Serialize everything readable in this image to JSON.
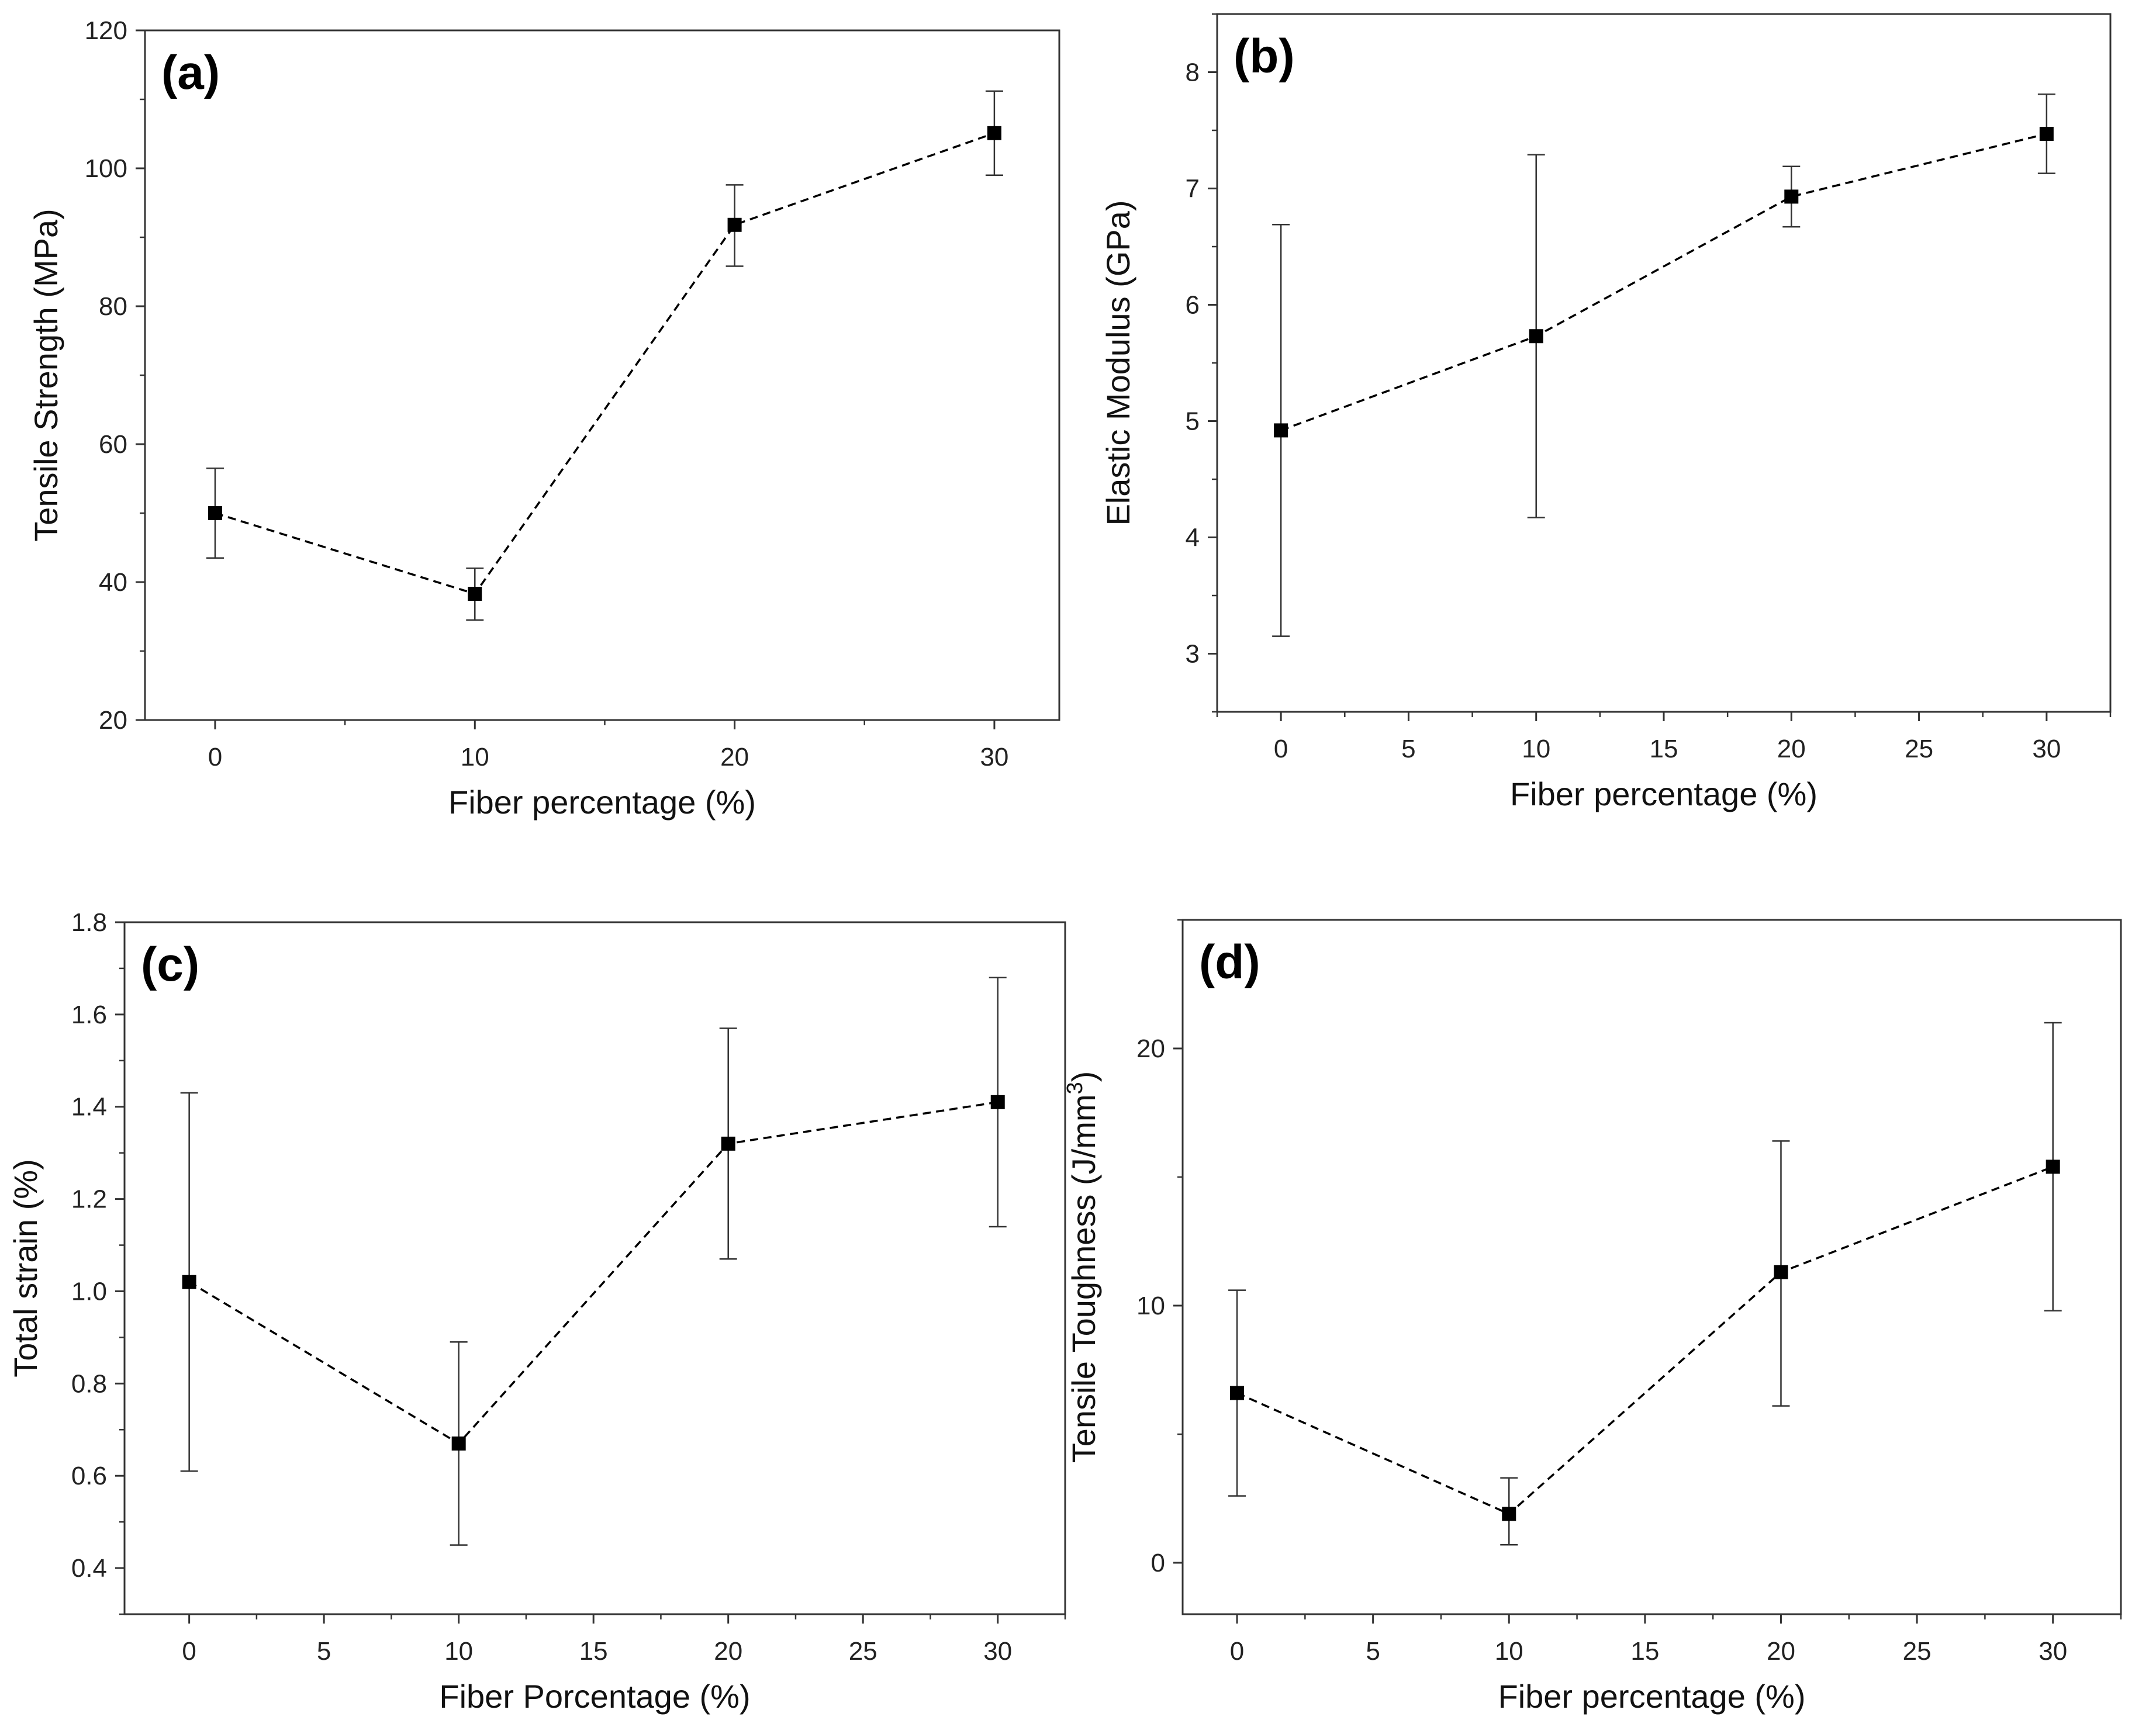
{
  "chart_data": [
    {
      "type": "line",
      "panel_label": "(a)",
      "xlabel": "Fiber percentage (%)",
      "ylabel": "Tensile Strength (MPa)",
      "x": [
        0,
        10,
        20,
        30
      ],
      "values": [
        50,
        38.3,
        91.8,
        105.1
      ],
      "err_low": [
        43.5,
        34.5,
        85.8,
        99
      ],
      "err_high": [
        56.5,
        42,
        97.6,
        111.2
      ],
      "xlim": [
        -2.7,
        32.5
      ],
      "ylim": [
        20,
        120
      ],
      "xticks": [
        0,
        10,
        20,
        30
      ],
      "xtick_labels": [
        "0",
        "10",
        "20",
        "30"
      ],
      "yticks": [
        20,
        40,
        60,
        80,
        100,
        120
      ],
      "ytick_labels": [
        "20",
        "40",
        "60",
        "80",
        "100",
        "120"
      ]
    },
    {
      "type": "line",
      "panel_label": "(b)",
      "xlabel": "Fiber percentage (%)",
      "ylabel": "Elastic Modulus (GPa)",
      "x": [
        0,
        10,
        20,
        30
      ],
      "values": [
        4.92,
        5.73,
        6.93,
        7.47
      ],
      "err_low": [
        3.15,
        4.17,
        6.67,
        7.13
      ],
      "err_high": [
        6.69,
        7.29,
        7.19,
        7.81
      ],
      "xlim": [
        -2.5,
        32.5
      ],
      "ylim": [
        2.5,
        8.5
      ],
      "xticks": [
        0,
        5,
        10,
        15,
        20,
        25,
        30
      ],
      "xtick_labels": [
        "0",
        "5",
        "10",
        "15",
        "20",
        "25",
        "30"
      ],
      "yticks": [
        3,
        4,
        5,
        6,
        7,
        8
      ],
      "ytick_labels": [
        "3",
        "4",
        "5",
        "6",
        "7",
        "8"
      ]
    },
    {
      "type": "line",
      "panel_label": "(c)",
      "xlabel": "Fiber Porcentage (%)",
      "ylabel": "Total strain (%)",
      "x": [
        0,
        10,
        20,
        30
      ],
      "values": [
        1.02,
        0.67,
        1.32,
        1.41
      ],
      "err_low": [
        0.61,
        0.45,
        1.07,
        1.14
      ],
      "err_high": [
        1.43,
        0.89,
        1.57,
        1.68
      ],
      "xlim": [
        -2.4,
        32.5
      ],
      "ylim": [
        0.3,
        1.8
      ],
      "xticks": [
        0,
        5,
        10,
        15,
        20,
        25,
        30
      ],
      "xtick_labels": [
        "0",
        "5",
        "10",
        "15",
        "20",
        "25",
        "30"
      ],
      "yticks": [
        0.4,
        0.6,
        0.8,
        1.0,
        1.2,
        1.4,
        1.6,
        1.8
      ],
      "ytick_labels": [
        "0.4",
        "0.6",
        "0.8",
        "1.0",
        "1.2",
        "1.4",
        "1.6",
        "1.8"
      ]
    },
    {
      "type": "line",
      "panel_label": "(d)",
      "xlabel": "Fiber percentage (%)",
      "ylabel": "Tensile Toughness (J/mm",
      "ylabel_superscript": "3",
      "ylabel_suffix": ")",
      "x": [
        0,
        10,
        20,
        30
      ],
      "values": [
        6.6,
        1.9,
        11.3,
        15.4
      ],
      "err_low": [
        2.6,
        0.7,
        6.1,
        9.8
      ],
      "err_high": [
        10.6,
        3.3,
        16.4,
        21
      ],
      "xlim": [
        -2,
        32.5
      ],
      "ylim": [
        -2,
        25
      ],
      "xticks": [
        0,
        5,
        10,
        15,
        20,
        25,
        30
      ],
      "xtick_labels": [
        "0",
        "5",
        "10",
        "15",
        "20",
        "25",
        "30"
      ],
      "yticks": [
        0,
        10,
        20
      ],
      "ytick_labels": [
        "0",
        "10",
        "20"
      ]
    }
  ]
}
